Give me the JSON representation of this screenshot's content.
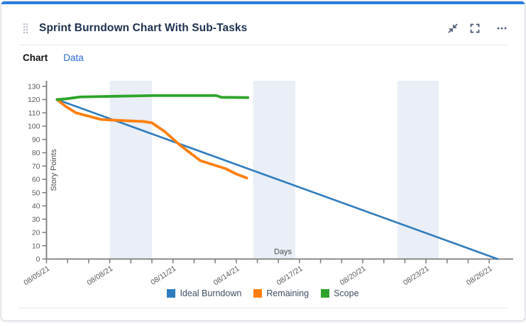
{
  "header": {
    "title": "Sprint Burndown Chart With Sub-Tasks",
    "actions": {
      "minimize_label": "minimize gadget",
      "fullscreen_label": "expand gadget",
      "more_label": "more options"
    }
  },
  "tabs": [
    {
      "label": "Chart",
      "active": true
    },
    {
      "label": "Data",
      "active": false
    }
  ],
  "ui_colors": {
    "accent_bar": "#2a7de4",
    "title_text": "#1e3150",
    "link_blue": "#2a6cd4",
    "icon_slate": "#44546f",
    "axis_line": "#7b7b7b",
    "tick_label": "#5c5c5c",
    "weekend_band": "#e9eef7",
    "legend_text": "#3e4d63"
  },
  "chart_data": {
    "type": "line",
    "xlabel": "Days",
    "ylabel": "Story Points",
    "ylim": [
      0,
      130
    ],
    "y_tick_step": 10,
    "x_day_count": 22,
    "x_tick_labels": [
      {
        "day": 0,
        "label": "08/05/21"
      },
      {
        "day": 3,
        "label": "08/08/21"
      },
      {
        "day": 6,
        "label": "08/11/21"
      },
      {
        "day": 9,
        "label": "08/14/21"
      },
      {
        "day": 12,
        "label": "08/17/21"
      },
      {
        "day": 15,
        "label": "08/20/21"
      },
      {
        "day": 18,
        "label": "08/23/21"
      },
      {
        "day": 21,
        "label": "08/26/21"
      }
    ],
    "weekend_bands_days": [
      [
        3.0,
        5.0
      ],
      [
        9.8,
        11.8
      ],
      [
        16.65,
        18.6
      ]
    ],
    "grid": false,
    "legend_position": "bottom-center",
    "series": [
      {
        "name": "Ideal Burndown",
        "color": "#2e7cbe",
        "stroke_width": 2.6,
        "points": [
          [
            0.5,
            120
          ],
          [
            21.4,
            0
          ]
        ]
      },
      {
        "name": "Remaining",
        "color": "#ff7f0e",
        "stroke_width": 3.8,
        "points": [
          [
            0.5,
            120
          ],
          [
            0.9,
            115
          ],
          [
            1.4,
            110
          ],
          [
            2.0,
            107.5
          ],
          [
            2.6,
            105
          ],
          [
            3.2,
            104.5
          ],
          [
            4.6,
            103.5
          ],
          [
            5.0,
            102.5
          ],
          [
            5.6,
            96
          ],
          [
            6.35,
            85.5
          ],
          [
            7.3,
            74
          ],
          [
            7.7,
            72
          ],
          [
            8.5,
            68
          ],
          [
            9.0,
            64
          ],
          [
            9.5,
            61
          ]
        ]
      },
      {
        "name": "Scope",
        "color": "#2ea42b",
        "stroke_width": 3.8,
        "points": [
          [
            0.5,
            120
          ],
          [
            0.9,
            120.5
          ],
          [
            1.6,
            122
          ],
          [
            3.3,
            122.5
          ],
          [
            5.0,
            123
          ],
          [
            8.05,
            123
          ],
          [
            8.3,
            121.7
          ],
          [
            9.55,
            121.5
          ]
        ]
      }
    ]
  }
}
